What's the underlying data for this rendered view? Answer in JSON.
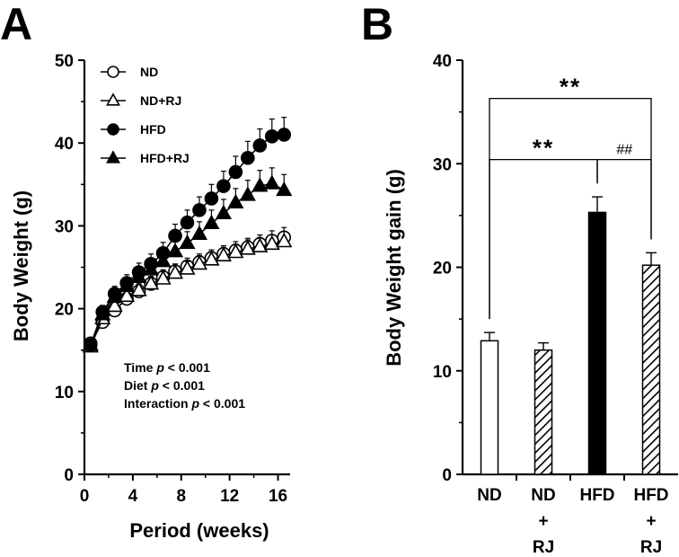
{
  "panelA": {
    "letter": "A",
    "chart_data": {
      "type": "line",
      "title": "",
      "xlabel": "Period (weeks)",
      "ylabel": "Body Weight (g)",
      "xlim": [
        0,
        17
      ],
      "ylim": [
        0,
        50
      ],
      "xticks": [
        0,
        4,
        8,
        12,
        16
      ],
      "yticks": [
        0,
        10,
        20,
        30,
        40,
        50
      ],
      "grid": false,
      "legend_position": "top-left",
      "x": [
        0.5,
        1.5,
        2.5,
        3.5,
        4.5,
        5.5,
        6.5,
        7.5,
        8.5,
        9.5,
        10.5,
        11.5,
        12.5,
        13.5,
        14.5,
        15.5,
        16.5
      ],
      "series": [
        {
          "name": "ND",
          "marker": "open-circle",
          "values": [
            15.8,
            18.4,
            19.8,
            21.2,
            22.1,
            23.0,
            23.8,
            24.5,
            25.1,
            25.6,
            26.1,
            26.6,
            27.0,
            27.4,
            27.8,
            28.2,
            28.6
          ],
          "errors": [
            0.6,
            0.7,
            0.7,
            0.8,
            0.8,
            0.9,
            0.9,
            0.9,
            1.0,
            1.0,
            1.0,
            1.0,
            1.1,
            1.1,
            1.1,
            1.2,
            1.2
          ]
        },
        {
          "name": "ND+RJ",
          "marker": "open-triangle",
          "values": [
            15.4,
            18.8,
            20.3,
            21.5,
            22.2,
            23.0,
            23.6,
            24.3,
            24.8,
            25.4,
            25.9,
            26.4,
            26.8,
            27.2,
            27.5,
            27.8,
            28.1
          ],
          "errors": [
            0.6,
            0.7,
            0.7,
            0.8,
            0.8,
            0.8,
            0.9,
            0.9,
            0.9,
            1.0,
            1.0,
            1.0,
            1.0,
            1.1,
            1.1,
            1.1,
            1.2
          ]
        },
        {
          "name": "HFD",
          "marker": "filled-circle",
          "values": [
            15.6,
            19.6,
            21.8,
            23.1,
            24.4,
            25.4,
            26.7,
            28.8,
            30.4,
            31.9,
            33.3,
            34.8,
            36.5,
            38.2,
            39.7,
            40.8,
            41.0
          ],
          "errors": [
            0.6,
            0.8,
            0.9,
            1.0,
            1.1,
            1.2,
            1.3,
            1.4,
            1.5,
            1.6,
            1.7,
            1.8,
            1.9,
            2.0,
            2.0,
            2.1,
            2.1
          ]
        },
        {
          "name": "HFD+RJ",
          "marker": "filled-triangle",
          "values": [
            15.6,
            19.3,
            21.4,
            22.7,
            23.8,
            24.7,
            25.7,
            26.9,
            27.9,
            29.0,
            30.3,
            31.5,
            32.8,
            33.7,
            34.8,
            35.1,
            34.3
          ],
          "errors": [
            0.6,
            0.8,
            0.9,
            1.0,
            1.0,
            1.1,
            1.2,
            1.3,
            1.4,
            1.5,
            1.6,
            1.7,
            1.7,
            1.8,
            1.9,
            1.9,
            1.9
          ]
        }
      ],
      "annotations": [
        {
          "label": "Time",
          "p": "p",
          "rest": "< 0.001"
        },
        {
          "label": "Diet",
          "p": "p",
          "rest": "< 0.001"
        },
        {
          "label": "Interaction",
          "p": "p",
          "rest": "< 0.001"
        }
      ]
    }
  },
  "panelB": {
    "letter": "B",
    "chart_data": {
      "type": "bar",
      "title": "",
      "xlabel": "",
      "ylabel": "Body Weight gain (g)",
      "ylim": [
        0,
        40
      ],
      "yticks": [
        0,
        10,
        20,
        30,
        40
      ],
      "grid": false,
      "categories": [
        {
          "lines": [
            "ND"
          ],
          "fill": "open"
        },
        {
          "lines": [
            "ND",
            "+",
            "RJ"
          ],
          "fill": "hatched"
        },
        {
          "lines": [
            "HFD"
          ],
          "fill": "solid"
        },
        {
          "lines": [
            "HFD",
            "+",
            "RJ"
          ],
          "fill": "hatched"
        }
      ],
      "values": [
        12.9,
        12.0,
        25.3,
        20.2
      ],
      "errors": [
        0.8,
        0.7,
        1.5,
        1.2
      ],
      "significance": [
        {
          "from": 0,
          "to": 3,
          "label": "**",
          "level": 36.3
        },
        {
          "from": 0,
          "to": 2,
          "label": "**",
          "level": 30.4
        },
        {
          "from": 2,
          "to": 3,
          "label": "##",
          "level": 30.4
        }
      ]
    }
  }
}
